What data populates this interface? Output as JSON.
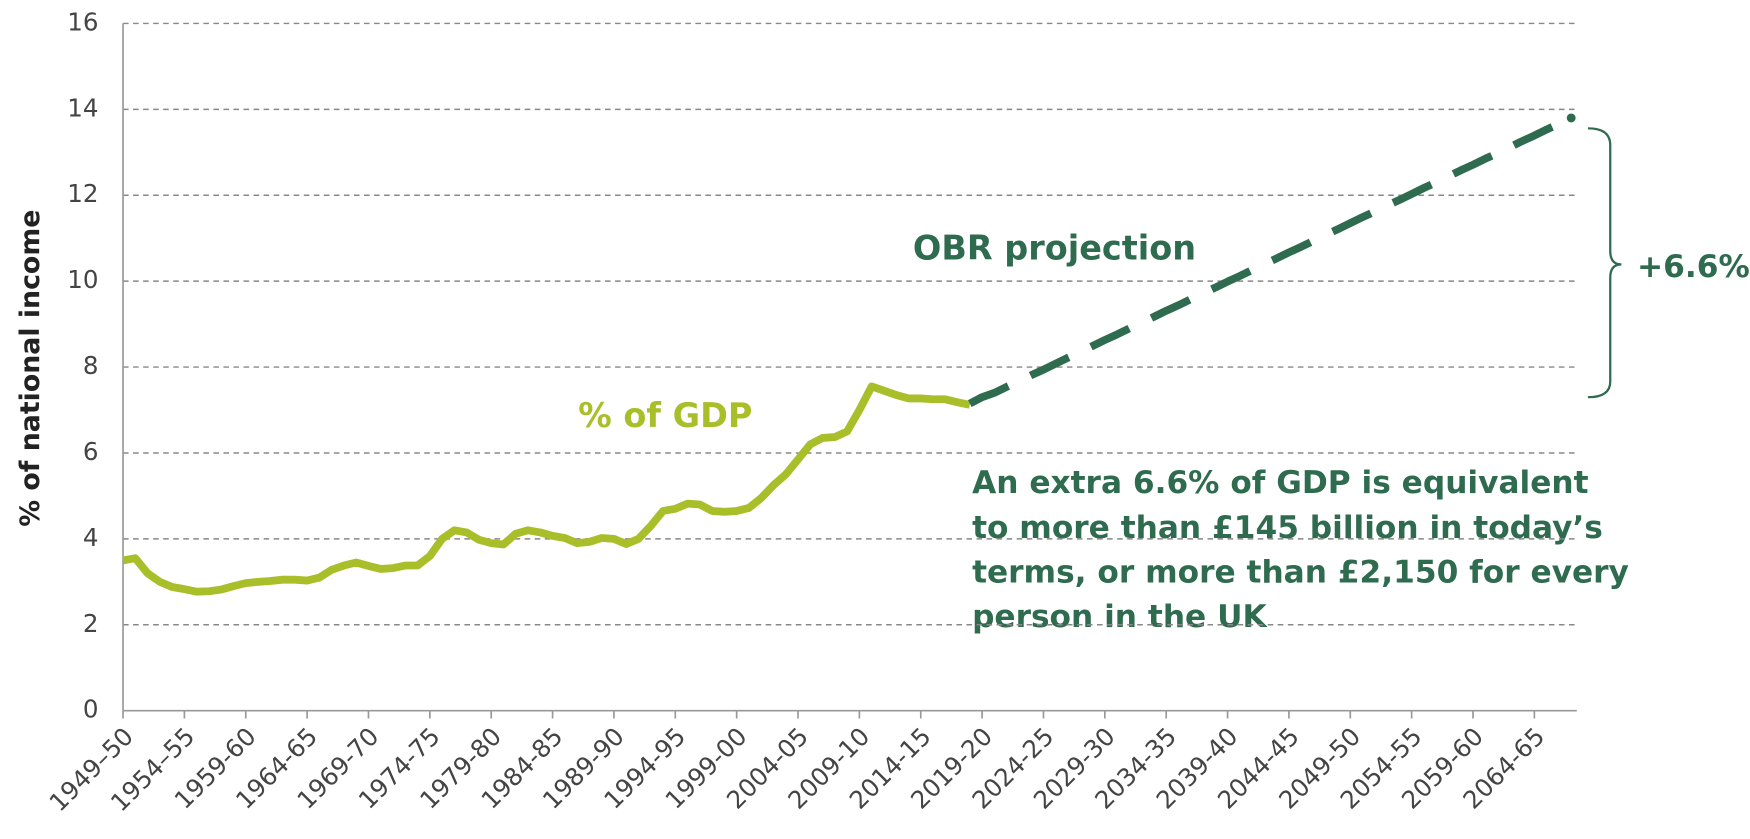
{
  "chart_data": {
    "type": "line",
    "y_label": "% of national income",
    "categories": [
      "1949–50",
      null,
      null,
      null,
      null,
      "1954–55",
      null,
      null,
      null,
      null,
      "1959-60",
      null,
      null,
      null,
      null,
      "1964-65",
      null,
      null,
      null,
      null,
      "1969-70",
      null,
      null,
      null,
      null,
      "1974-75",
      null,
      null,
      null,
      null,
      "1979-80",
      null,
      null,
      null,
      null,
      "1984-85",
      null,
      null,
      null,
      null,
      "1989-90",
      null,
      null,
      null,
      null,
      "1994-95",
      null,
      null,
      null,
      null,
      "1999-00",
      null,
      null,
      null,
      null,
      "2004-05",
      null,
      null,
      null,
      null,
      "2009-10",
      null,
      null,
      null,
      null,
      "2014-15",
      null,
      null,
      null,
      null,
      "2019-20",
      null,
      null,
      null,
      null,
      "2024-25",
      null,
      null,
      null,
      null,
      "2029-30",
      null,
      null,
      null,
      null,
      "2034-35",
      null,
      null,
      null,
      null,
      "2039-40",
      null,
      null,
      null,
      null,
      "2044-45",
      null,
      null,
      null,
      null,
      "2049-50",
      null,
      null,
      null,
      null,
      "2054-55",
      null,
      null,
      null,
      null,
      "2059-60",
      null,
      null,
      null,
      null,
      "2064-65",
      null,
      null,
      null
    ],
    "series": [
      {
        "name": "% of GDP",
        "color": "#a8bf2a",
        "dashed": false,
        "values": [
          3.5,
          3.55,
          3.2,
          3.0,
          2.88,
          2.83,
          2.77,
          2.78,
          2.82,
          2.9,
          2.97,
          3.0,
          3.02,
          3.05,
          3.05,
          3.03,
          3.1,
          3.28,
          3.38,
          3.45,
          3.37,
          3.3,
          3.32,
          3.38,
          3.38,
          3.6,
          4.0,
          4.2,
          4.15,
          3.98,
          3.9,
          3.87,
          4.12,
          4.2,
          4.15,
          4.07,
          4.02,
          3.9,
          3.93,
          4.02,
          4.0,
          3.88,
          4.0,
          4.3,
          4.65,
          4.7,
          4.82,
          4.8,
          4.65,
          4.63,
          4.65,
          4.72,
          4.95,
          5.25,
          5.5,
          5.85,
          6.2,
          6.35,
          6.37,
          6.5,
          7.0,
          7.55,
          7.45,
          7.35,
          7.27,
          7.27,
          7.25,
          7.25,
          7.18,
          7.12,
          null,
          null,
          null,
          null,
          null,
          null,
          null,
          null,
          null,
          null,
          null,
          null,
          null,
          null,
          null,
          null,
          null,
          null,
          null,
          null,
          null,
          null,
          null,
          null,
          null,
          null,
          null,
          null,
          null,
          null,
          null,
          null,
          null,
          null,
          null,
          null,
          null,
          null,
          null,
          null,
          null,
          null,
          null,
          null,
          null,
          null,
          null,
          null,
          null
        ]
      },
      {
        "name": "OBR projection",
        "color": "#2e6b4f",
        "dashed": true,
        "values": [
          null,
          null,
          null,
          null,
          null,
          null,
          null,
          null,
          null,
          null,
          null,
          null,
          null,
          null,
          null,
          null,
          null,
          null,
          null,
          null,
          null,
          null,
          null,
          null,
          null,
          null,
          null,
          null,
          null,
          null,
          null,
          null,
          null,
          null,
          null,
          null,
          null,
          null,
          null,
          null,
          null,
          null,
          null,
          null,
          null,
          null,
          null,
          null,
          null,
          null,
          null,
          null,
          null,
          null,
          null,
          null,
          null,
          null,
          null,
          null,
          null,
          null,
          null,
          null,
          null,
          null,
          null,
          null,
          null,
          7.15,
          7.3,
          7.4,
          7.54,
          7.67,
          7.81,
          7.94,
          8.08,
          8.22,
          8.35,
          8.49,
          8.63,
          8.76,
          8.9,
          9.03,
          9.17,
          9.31,
          9.44,
          9.58,
          9.72,
          9.85,
          9.99,
          10.12,
          10.26,
          10.4,
          10.53,
          10.67,
          10.8,
          10.94,
          11.08,
          11.21,
          11.35,
          11.49,
          11.62,
          11.76,
          11.89,
          12.03,
          12.17,
          12.3,
          12.44,
          12.58,
          12.71,
          12.85,
          12.98,
          13.12,
          13.26,
          13.39,
          13.53,
          13.66,
          13.8
        ]
      }
    ],
    "ylim": [
      0,
      16
    ],
    "yticks": [
      0,
      2,
      4,
      6,
      8,
      10,
      12,
      14,
      16
    ],
    "grid": true,
    "annotations": {
      "increase": "+6.6%",
      "note": [
        "An extra 6.6% of GDP is equivalent",
        "to more than £145 billion in today’s",
        "terms, or more than £2,150 for every",
        "person in the UK"
      ]
    }
  }
}
